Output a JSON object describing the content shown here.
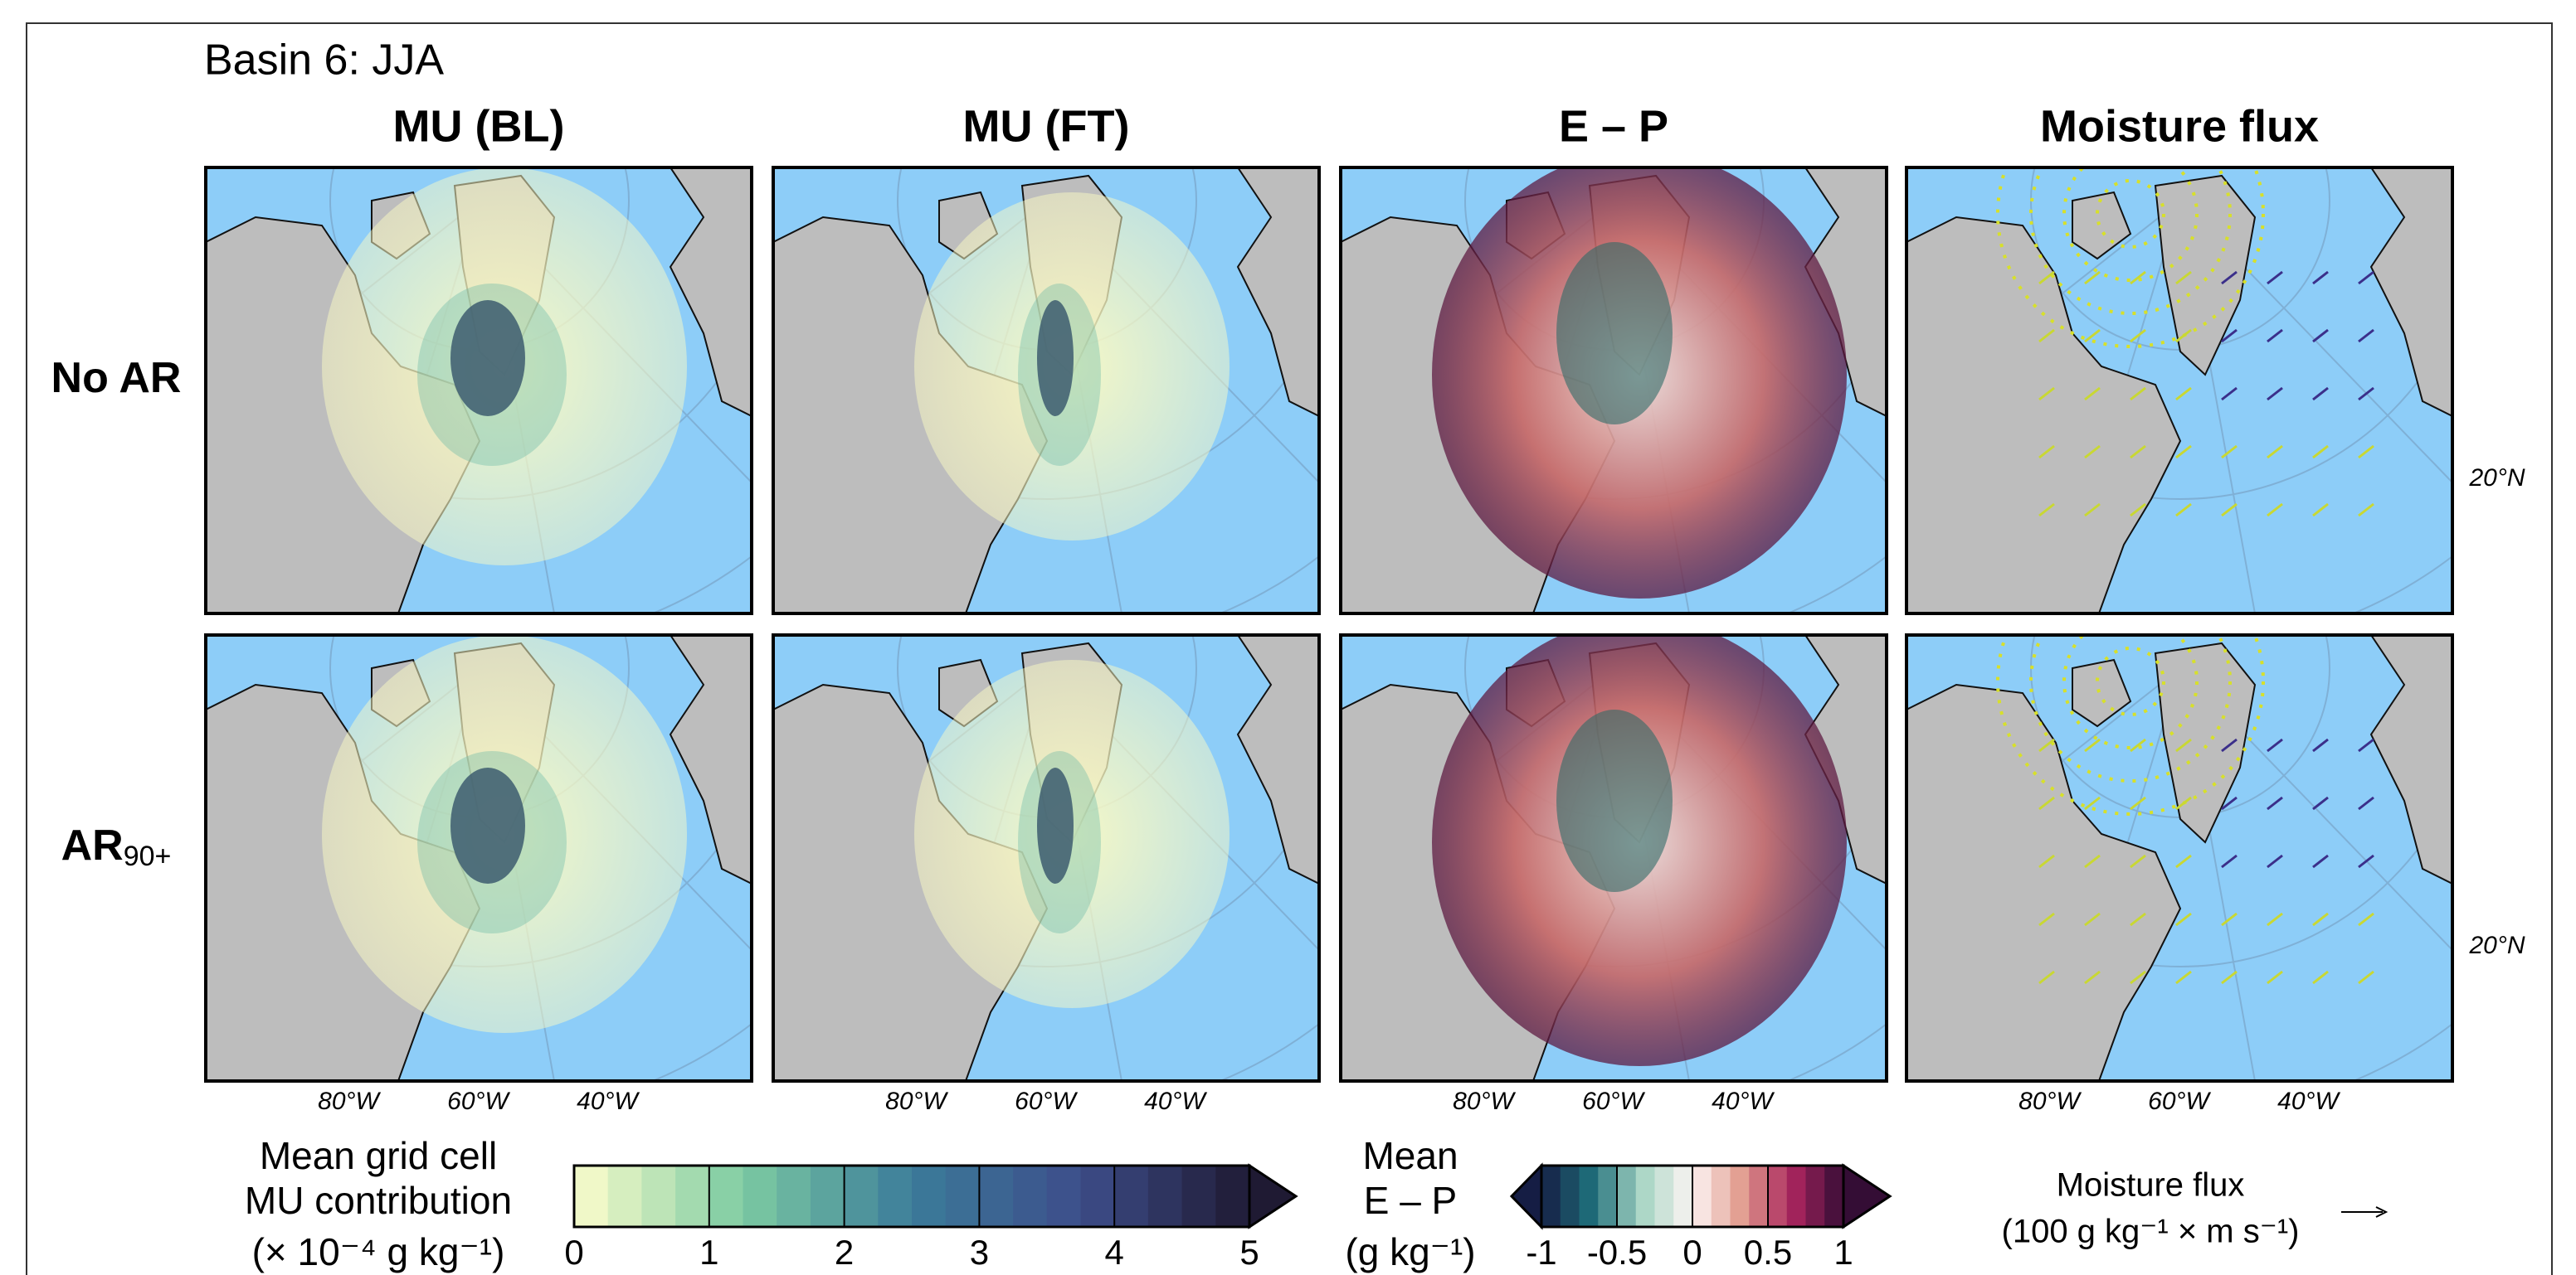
{
  "title": "Basin 6: JJA",
  "columns": [
    "MU (BL)",
    "MU (FT)",
    "E – P",
    "Moisture flux"
  ],
  "rows": [
    {
      "label": "No AR"
    },
    {
      "label": "AR",
      "subscript": "90+"
    }
  ],
  "latitude_label": "20°N",
  "longitude_labels": [
    "80°W",
    "60°W",
    "40°W"
  ],
  "colorbars": [
    {
      "label": [
        "Mean grid cell",
        "MU contribution",
        "(× 10⁻⁴ g kg⁻¹)"
      ],
      "lim": [
        0,
        5
      ],
      "ticks": [
        0,
        1,
        2,
        3,
        4,
        5
      ],
      "segments": 20,
      "colors": [
        "#fdfdcc",
        "#7ccba2",
        "#3b7c9a",
        "#3d4d8a",
        "#1f1a33"
      ]
    },
    {
      "label": [
        "Mean",
        "E – P",
        "(g kg⁻¹)"
      ],
      "lim": [
        -1,
        1
      ],
      "ticks": [
        -1,
        -0.5,
        0,
        0.5,
        1
      ],
      "segments": 16,
      "colors": [
        "#151d44",
        "#1f6e7a",
        "#a8d5c4",
        "#fdf5f4",
        "#e19a8c",
        "#a8245e",
        "#340d35"
      ]
    }
  ],
  "quiver_key": {
    "label": [
      "Moisture flux",
      "(100 g kg⁻¹ × m s⁻¹)"
    ]
  }
}
